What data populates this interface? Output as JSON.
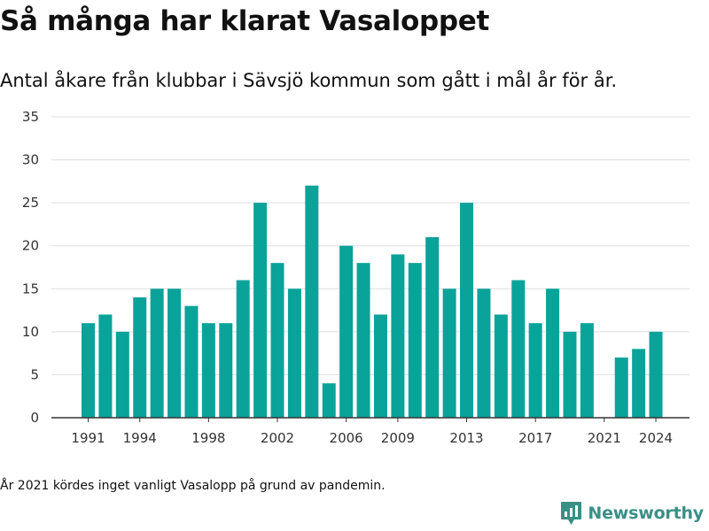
{
  "header": {
    "title": "Så många har klarat Vasaloppet",
    "subtitle": "Antal åkare från klubbar i Sävsjö kommun som gått i mål år för år."
  },
  "footnote": "År 2021 kördes inget vanligt Vasalopp på grund av pandemin.",
  "brand": {
    "name": "Newsworthy",
    "icon": "newsworthy-logo-icon",
    "color": "#3a8f86"
  },
  "colors": {
    "bar": "#0aa39a",
    "grid": "#dddddd",
    "axis": "#333333",
    "text": "#333333"
  },
  "chart_data": {
    "type": "bar",
    "title": "",
    "xlabel": "",
    "ylabel": "",
    "ylim": [
      0,
      35
    ],
    "yticks": [
      0,
      5,
      10,
      15,
      20,
      25,
      30,
      35
    ],
    "xticks": [
      1991,
      1994,
      1998,
      2002,
      2006,
      2009,
      2013,
      2017,
      2021,
      2024
    ],
    "grid": true,
    "legend": "none",
    "x": [
      1991,
      1992,
      1993,
      1994,
      1995,
      1996,
      1997,
      1998,
      1999,
      2000,
      2001,
      2002,
      2003,
      2004,
      2005,
      2006,
      2007,
      2008,
      2009,
      2010,
      2011,
      2012,
      2013,
      2014,
      2015,
      2016,
      2017,
      2018,
      2019,
      2020,
      2021,
      2022,
      2023,
      2024
    ],
    "values": [
      11,
      12,
      10,
      14,
      15,
      15,
      13,
      11,
      11,
      16,
      25,
      18,
      15,
      27,
      4,
      20,
      18,
      12,
      19,
      18,
      21,
      15,
      25,
      15,
      12,
      16,
      11,
      15,
      10,
      11,
      0,
      7,
      8,
      10
    ]
  }
}
